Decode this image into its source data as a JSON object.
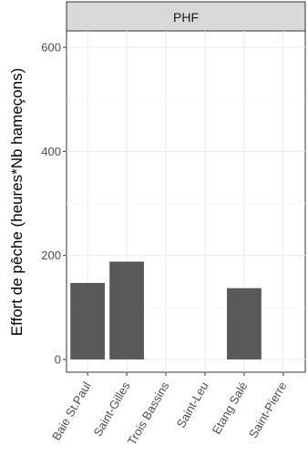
{
  "chart_data": {
    "type": "bar",
    "facet_label": "PHF",
    "ylabel": "Effort de pêche (heures*Nb hameçons)",
    "xlabel": "",
    "categories": [
      "Baie St.Paul",
      "Saint-Gilles",
      "Trois Bassins",
      "Saint-Leu",
      "Etang Salé",
      "Saint-Pierre"
    ],
    "values": [
      147,
      188,
      0,
      0,
      137,
      0
    ],
    "ylim": [
      0,
      630
    ],
    "yticks": [
      0,
      200,
      400,
      600
    ],
    "grid": true,
    "bar_color": "#595959",
    "panel_strip_color": "#d9d9d9"
  }
}
